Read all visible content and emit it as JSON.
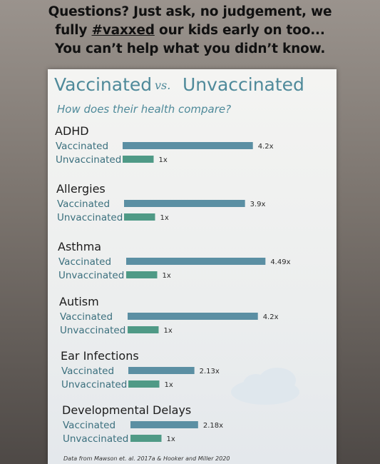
{
  "caption": {
    "line1": "Questions? Just ask, no judgement, we",
    "line2_pre": "fully ",
    "line2_tag": "#vaxxed",
    "line2_post": " our kids early on too...",
    "line3": "You can’t help what you didn’t know."
  },
  "colors": {
    "vaccinated_bar": "#5b8fa3",
    "unvaccinated_bar": "#4f9a86",
    "title": "#4f8a9a"
  },
  "chart_data": {
    "type": "bar",
    "orientation": "horizontal",
    "title_left": "Vaccinated",
    "title_vs": "vs.",
    "title_right": "Unvaccinated",
    "subtitle": "How does their health compare?",
    "row_labels": [
      "Vaccinated",
      "Unvaccinated"
    ],
    "categories": [
      "ADHD",
      "Allergies",
      "Asthma",
      "Autism",
      "Ear Infections",
      "Developmental Delays"
    ],
    "series": [
      {
        "name": "Vaccinated",
        "values": [
          4.2,
          3.9,
          4.49,
          4.2,
          2.13,
          2.18
        ],
        "labels": [
          "4.2x",
          "3.9x",
          "4.49x",
          "4.2x",
          "2.13x",
          "2.18x"
        ]
      },
      {
        "name": "Unvaccinated",
        "values": [
          1,
          1,
          1,
          1,
          1,
          1
        ],
        "labels": [
          "1x",
          "1x",
          "1x",
          "1x",
          "1x",
          "1x"
        ]
      }
    ],
    "source_note": "Data from Mawson et. al. 2017a & Hooker and Miller 2020"
  }
}
